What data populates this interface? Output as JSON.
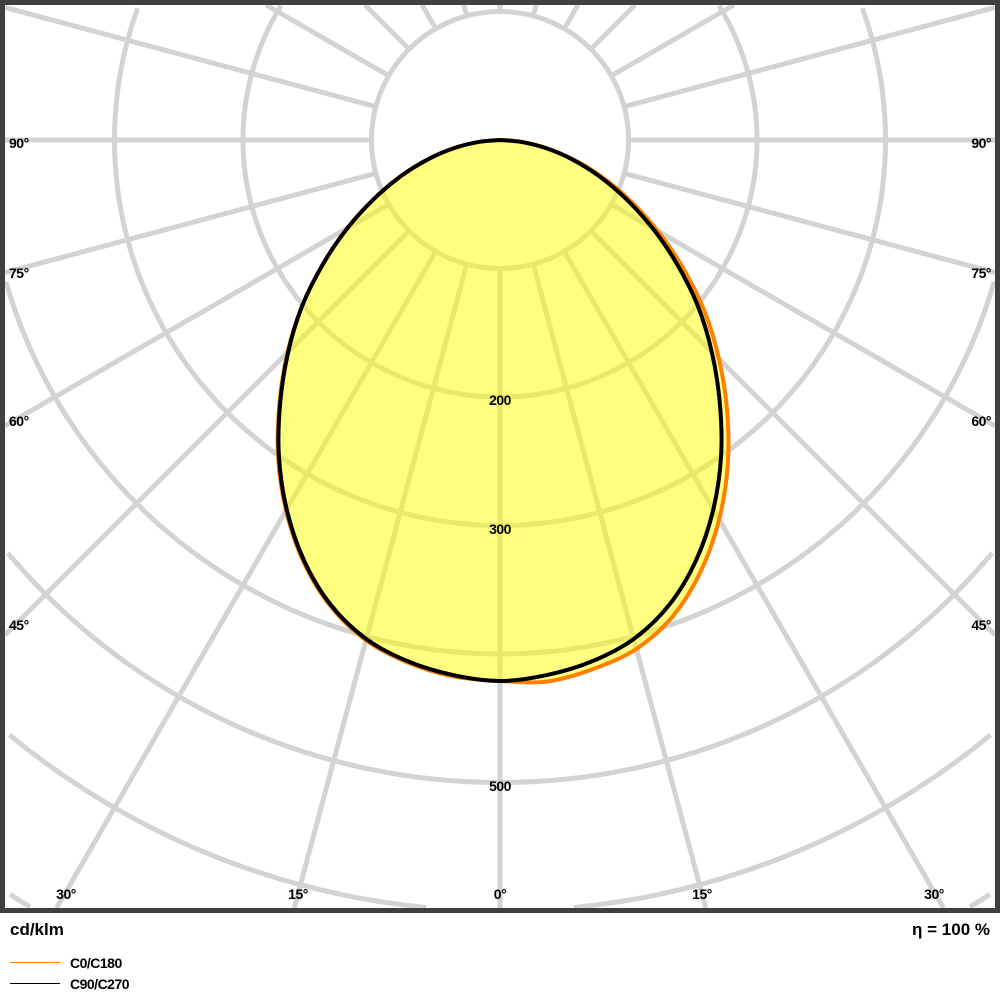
{
  "chart_data": {
    "type": "polar",
    "unit_label": "cd/klm",
    "efficiency_label": "η = 100 %",
    "radial_ticks": [
      100,
      200,
      300,
      400,
      500,
      600,
      700
    ],
    "radial_tick_labels": [
      {
        "value": 200,
        "text": "200"
      },
      {
        "value": 300,
        "text": "300"
      },
      {
        "value": 500,
        "text": "500"
      }
    ],
    "angle_step_deg": 15,
    "angle_labels_side": [
      "90°",
      "75°",
      "60°",
      "45°"
    ],
    "angle_labels_bottom": [
      "30°",
      "15°",
      "0°",
      "15°",
      "30°"
    ],
    "grid": true,
    "legend_placement": "bottom-left",
    "angles_deg": [
      0,
      5,
      10,
      15,
      20,
      25,
      30,
      35,
      40,
      45,
      50,
      55,
      60,
      65,
      70,
      75,
      80,
      85,
      90
    ],
    "series": [
      {
        "name": "C0/C180",
        "color": "#ff8000",
        "right_values": [
          425,
          423,
          418,
          410,
          394,
          370,
          341,
          309,
          275,
          241,
          208,
          174,
          142,
          112,
          85,
          60,
          37,
          17,
          0
        ],
        "left_values": [
          421,
          419,
          413,
          403,
          386,
          362,
          333,
          301,
          267,
          234,
          201,
          168,
          137,
          108,
          82,
          58,
          36,
          16,
          0
        ]
      },
      {
        "name": "C90/C270",
        "color": "#000000",
        "right_values": [
          421,
          418,
          412,
          402,
          385,
          361,
          332,
          300,
          266,
          233,
          201,
          168,
          137,
          108,
          82,
          58,
          36,
          16,
          0
        ],
        "left_values": [
          421,
          418,
          412,
          402,
          385,
          361,
          332,
          300,
          266,
          233,
          201,
          168,
          137,
          108,
          82,
          58,
          36,
          16,
          0
        ]
      }
    ],
    "fill_color": "#ffff00",
    "grid_color": "#d3d3d3",
    "frame_color": "#404040"
  }
}
